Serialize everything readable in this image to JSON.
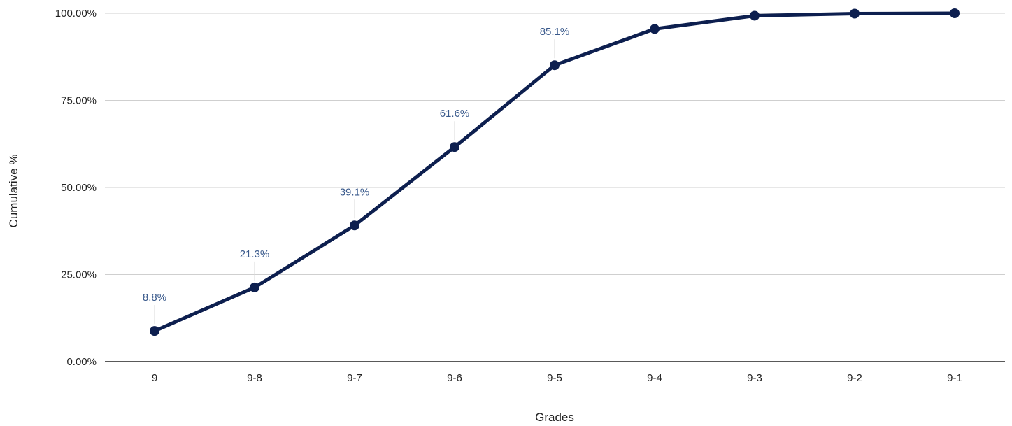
{
  "chart_data": {
    "type": "line",
    "title": "",
    "xlabel": "Grades",
    "ylabel": "Cumulative %",
    "categories": [
      "9",
      "9-8",
      "9-7",
      "9-6",
      "9-5",
      "9-4",
      "9-3",
      "9-2",
      "9-1"
    ],
    "series": [
      {
        "values": [
          8.8,
          21.3,
          39.1,
          61.6,
          85.1,
          95.5,
          99.3,
          99.9,
          100.0
        ],
        "data_labels": [
          "8.8%",
          "21.3%",
          "39.1%",
          "61.6%",
          "85.1%",
          "",
          "",
          "",
          ""
        ]
      }
    ],
    "ylim": [
      0,
      100
    ],
    "yticks": [
      {
        "value": 0,
        "label": "0.00%"
      },
      {
        "value": 25,
        "label": "25.00%"
      },
      {
        "value": 50,
        "label": "50.00%"
      },
      {
        "value": 75,
        "label": "75.00%"
      },
      {
        "value": 100,
        "label": "100.00%"
      }
    ],
    "grid": "horizontal",
    "legend": "none",
    "colors": {
      "line": "#0d1f4f",
      "marker": "#0d1f4f",
      "data_label": "#3a5a8c",
      "grid": "#cfcfcf",
      "axis": "#222222",
      "leader": "#d9d9d9"
    }
  }
}
